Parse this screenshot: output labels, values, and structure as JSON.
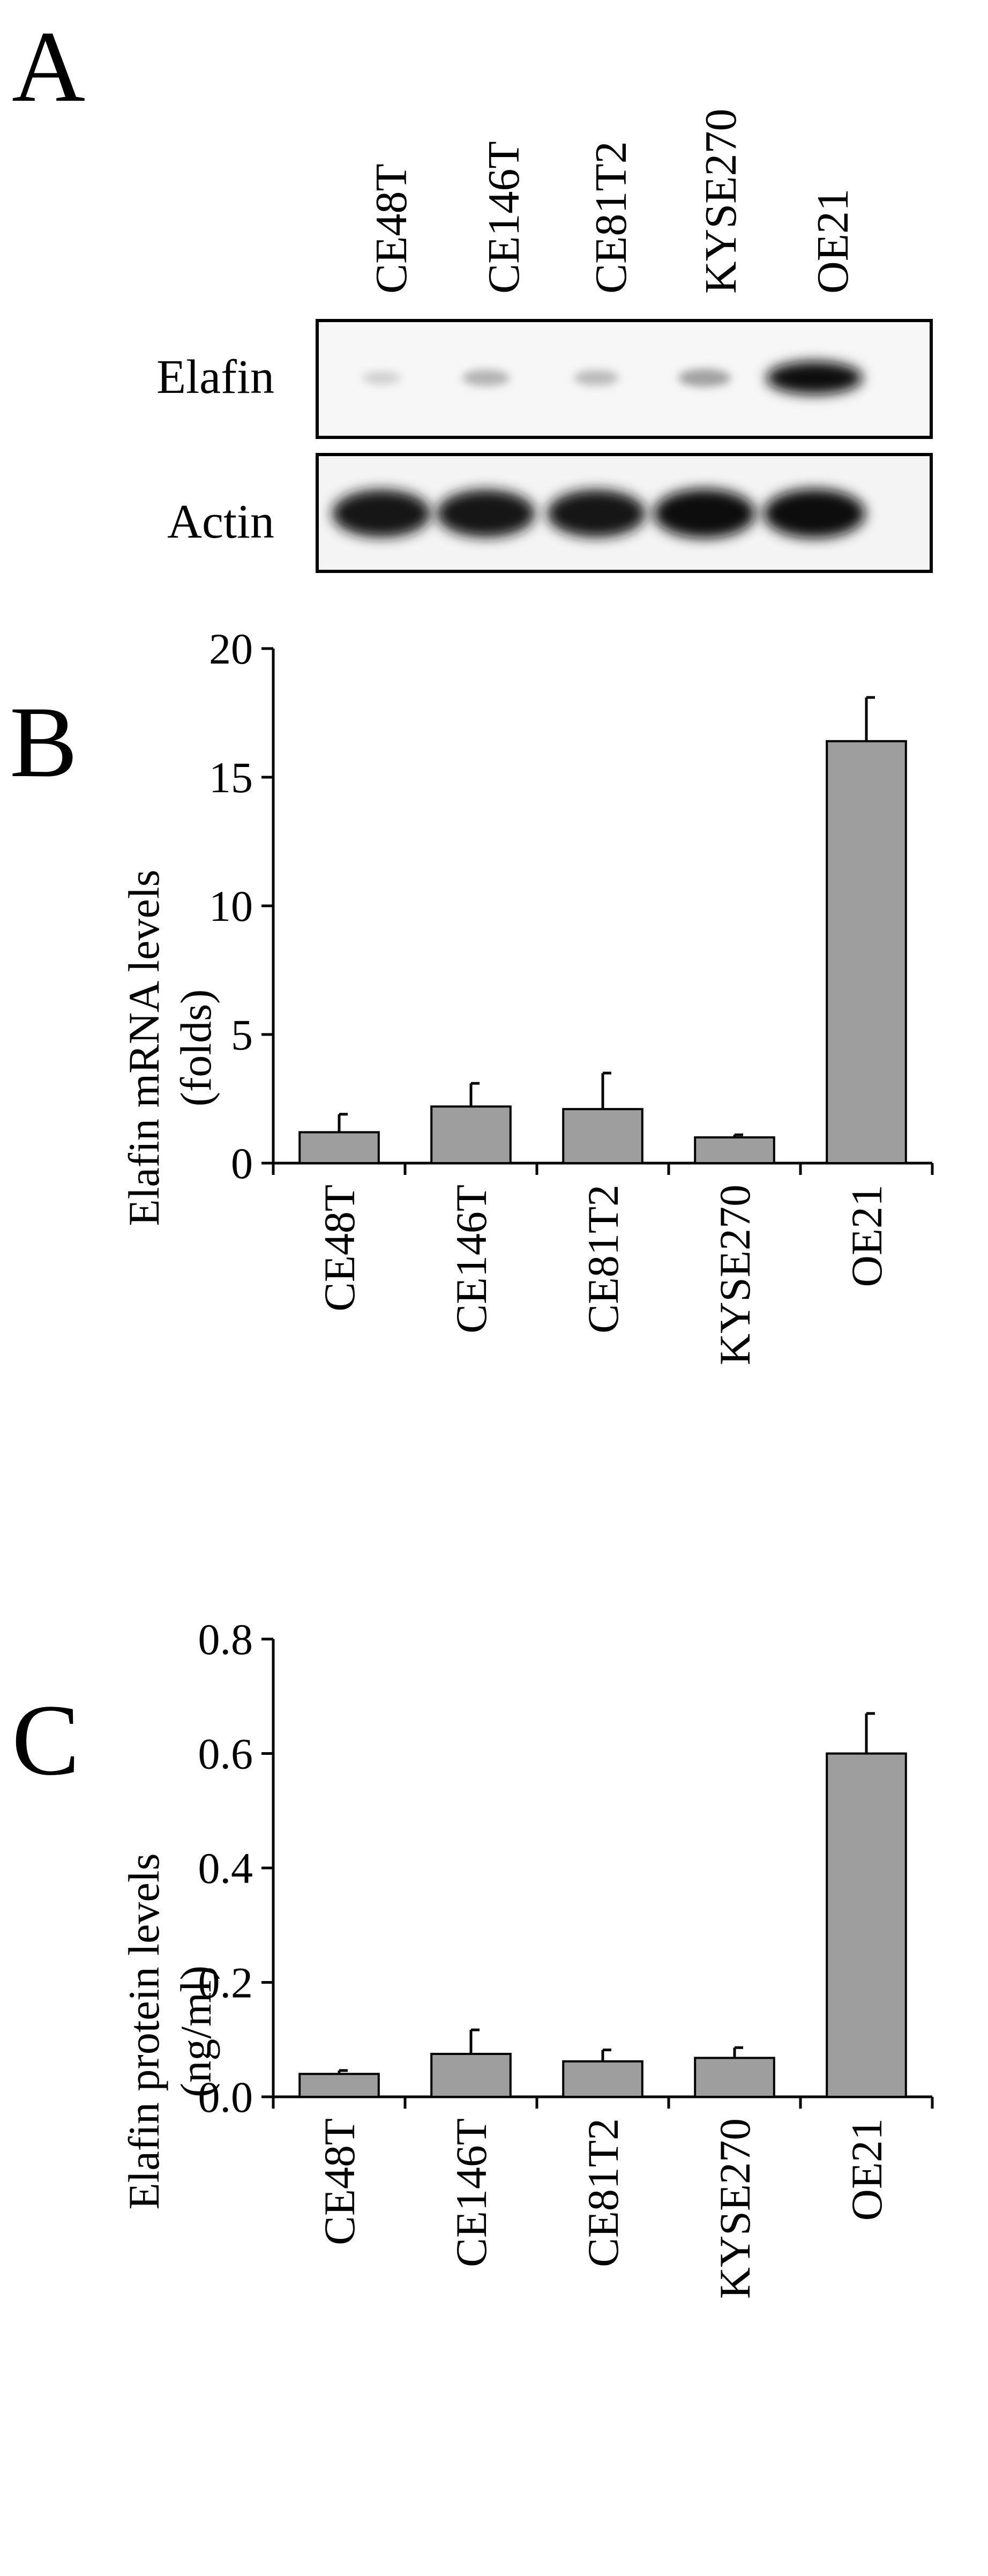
{
  "panels": {
    "a": {
      "letter": "A"
    },
    "b": {
      "letter": "B"
    },
    "c": {
      "letter": "C"
    }
  },
  "blot": {
    "lanes": [
      "CE48T",
      "CE146T",
      "CE81T2",
      "KYSE270",
      "OE21"
    ],
    "rows": [
      {
        "label": "Elafin",
        "intensity": [
          0.08,
          0.22,
          0.18,
          0.3,
          1.0
        ]
      },
      {
        "label": "Actin",
        "intensity": [
          0.95,
          0.95,
          0.95,
          1.0,
          1.0
        ]
      }
    ]
  },
  "chart_data": [
    {
      "type": "bar",
      "categories": [
        "CE48T",
        "CE146T",
        "CE81T2",
        "KYSE270",
        "OE21"
      ],
      "values": [
        1.2,
        2.2,
        2.1,
        1.0,
        16.4
      ],
      "errors": [
        0.7,
        0.9,
        1.4,
        0.1,
        1.7
      ],
      "ylabel_lines": [
        "Elafin mRNA levels",
        "(folds)"
      ],
      "ylim": [
        0,
        20
      ],
      "yticks": [
        "0",
        "5",
        "10",
        "15",
        "20"
      ],
      "bar_color": "#9e9e9e",
      "grid": false
    },
    {
      "type": "bar",
      "categories": [
        "CE48T",
        "CE146T",
        "CE81T2",
        "KYSE270",
        "OE21"
      ],
      "values": [
        0.04,
        0.075,
        0.062,
        0.068,
        0.6
      ],
      "errors": [
        0.006,
        0.042,
        0.02,
        0.018,
        0.07
      ],
      "ylabel_lines": [
        "Elafin protein levels",
        "(ng/ml)"
      ],
      "ylim": [
        0,
        0.8
      ],
      "yticks": [
        "0.0",
        "0.2",
        "0.4",
        "0.6",
        "0.8"
      ],
      "bar_color": "#9e9e9e",
      "grid": false
    }
  ]
}
